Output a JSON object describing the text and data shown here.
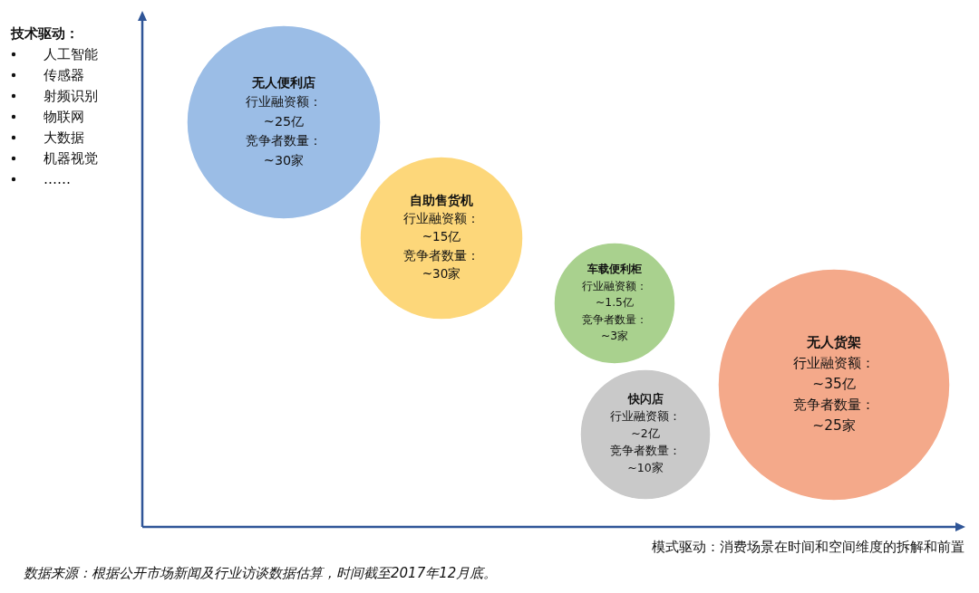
{
  "chart_data": {
    "type": "other",
    "ylabel": "技术驱动：",
    "xlabel": "模式驱动：消费场景在时间和空间维度的拆解和前置",
    "categories": [
      "无人便利店",
      "自助售货机",
      "车载便利柜",
      "快闪店",
      "无人货架"
    ],
    "series": [
      {
        "name": "行业融资额：",
        "colors": [
          "#9bbde6",
          "#fdd77a",
          "#a9d18e",
          "#c9c9c9",
          "#f4a98a"
        ],
        "values": [
          25,
          15,
          1.5,
          2,
          35
        ],
        "value_labels": [
          "~25亿",
          "~15亿",
          "~1.5亿",
          "~2亿",
          "~35亿"
        ]
      },
      {
        "name": "竞争者数量：",
        "values": [
          30,
          30,
          3,
          10,
          25
        ],
        "value_labels": [
          "~30家",
          "~30家",
          "~3家",
          "~10家",
          "~25家"
        ]
      }
    ],
    "annotations": [
      "人工智能",
      "传感器",
      "射频识别",
      "物联网",
      "大数据",
      "机器视觉",
      "……",
      "数据来源：根据公开市场新闻及行业访谈数据估算，时间截至2017年12月底。"
    ]
  }
}
